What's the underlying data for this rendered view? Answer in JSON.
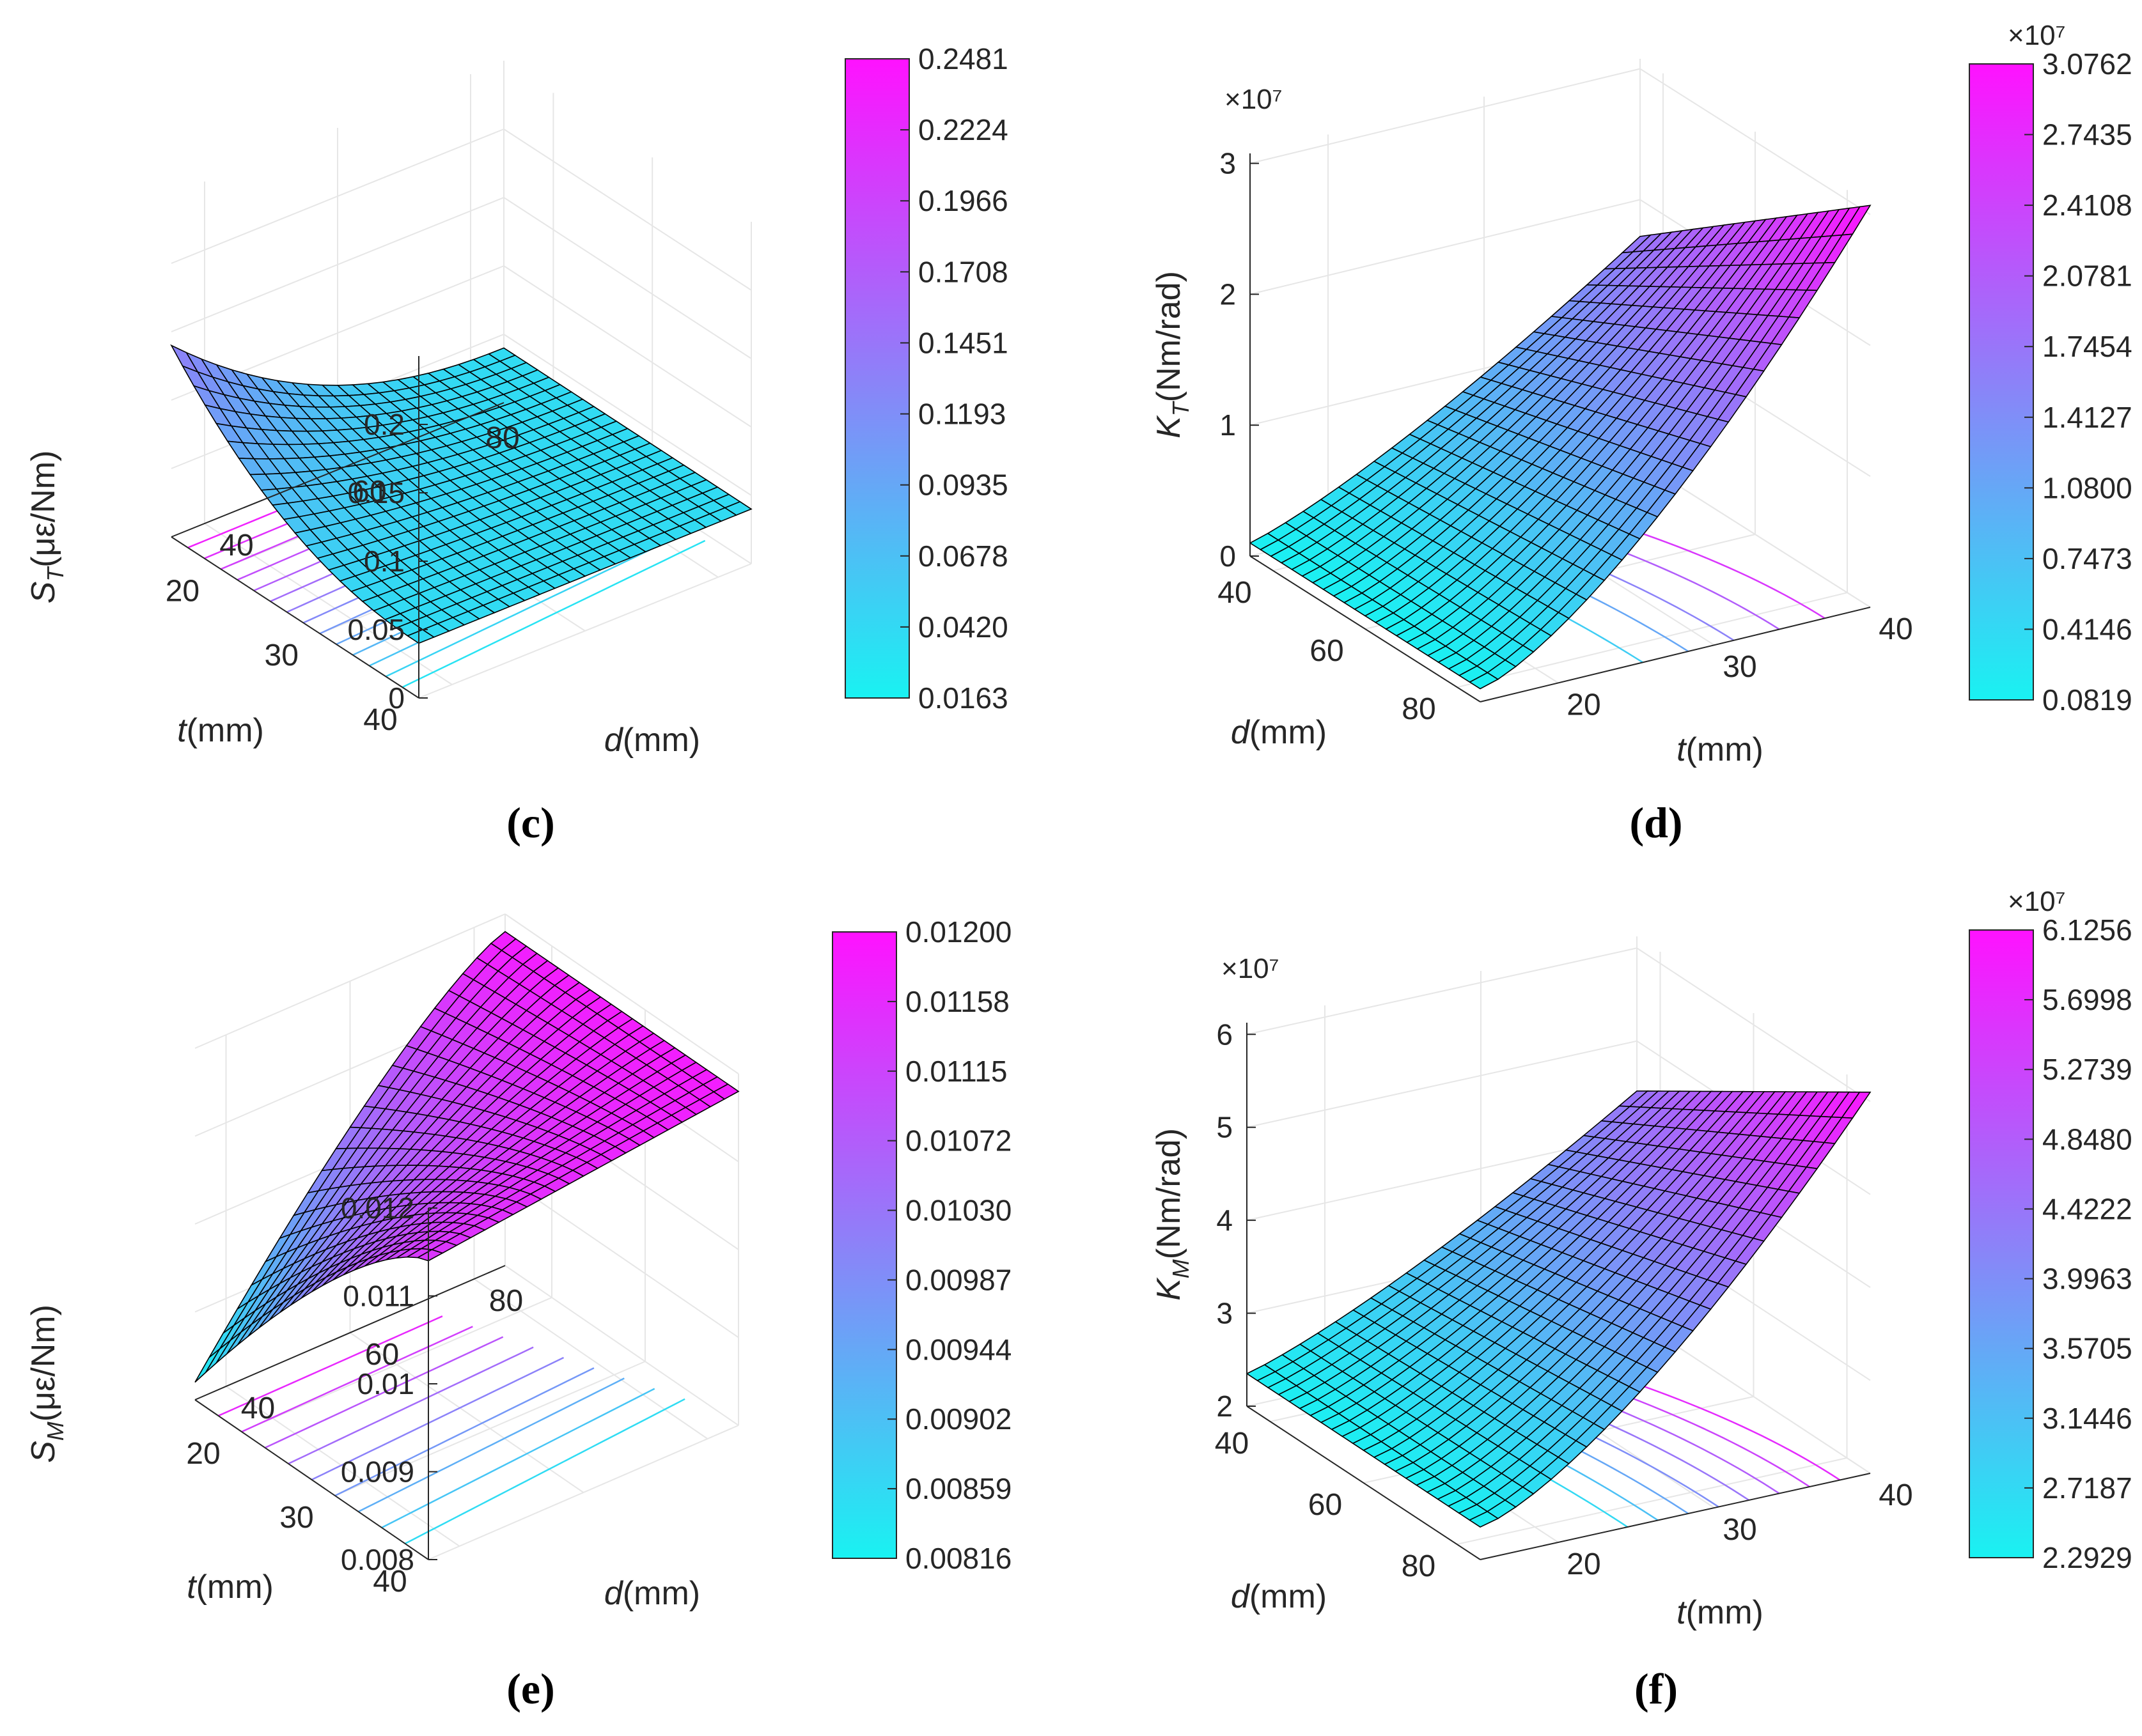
{
  "colors": {
    "low": "#19f2f2",
    "high": "#ff12ff",
    "axis": "#262626",
    "grid": "#e6e6e6",
    "mesh": "#000000"
  },
  "chart_data": [
    {
      "type": "surface",
      "panel": "c",
      "title": "",
      "zlabel_main": "S",
      "zlabel_sub": "T",
      "zlabel_unit": "(με/Nm)",
      "xlabel_var": "t",
      "xlabel_unit": "(mm)",
      "ylabel_var": "d",
      "ylabel_unit": "(mm)",
      "t_range": [
        15,
        40
      ],
      "d_range": [
        35,
        85
      ],
      "zlim": [
        0,
        0.25
      ],
      "t_ticks": [
        "20",
        "30",
        "40"
      ],
      "d_ticks": [
        "40",
        "60",
        "80"
      ],
      "z_ticks": [
        "0",
        "0.05",
        "0.1",
        "0.15",
        "0.2"
      ],
      "z_tick_values": [
        0,
        0.05,
        0.1,
        0.15,
        0.2
      ],
      "surface_corners": {
        "t_min_d_min": 0.14,
        "t_max_d_min": 0.04,
        "t_min_d_max": 0.04,
        "t_max_d_max": 0.04
      },
      "contours": 14,
      "colorbar": {
        "min": 0.0163,
        "max": 0.2481,
        "exponent": "",
        "ticks": [
          "0.2481",
          "0.2224",
          "0.1966",
          "0.1708",
          "0.1451",
          "0.1193",
          "0.0935",
          "0.0678",
          "0.0420",
          "0.0163"
        ]
      }
    },
    {
      "type": "surface",
      "panel": "d",
      "title": "",
      "zlabel_main": "K",
      "zlabel_sub": "T",
      "zlabel_unit": "(Nm/rad)",
      "xlabel_var": "t",
      "xlabel_unit": "(mm)",
      "ylabel_var": "d",
      "ylabel_unit": "(mm)",
      "t_range": [
        15,
        40
      ],
      "d_range": [
        35,
        85
      ],
      "zlim": [
        0,
        3.0762
      ],
      "z_exponent": "×10⁷",
      "t_ticks": [
        "20",
        "30",
        "40"
      ],
      "d_ticks": [
        "40",
        "60",
        "80"
      ],
      "z_ticks": [
        "0",
        "1",
        "2",
        "3"
      ],
      "z_tick_values": [
        0,
        1,
        2,
        3
      ],
      "surface_corners": {
        "t_min_d_min": 0.1,
        "t_max_d_min": 1.55,
        "t_min_d_max": 0.22,
        "t_max_d_max": 3.07
      },
      "contours": 5,
      "colorbar": {
        "min": 0.0819,
        "max": 3.0762,
        "exponent": "×10⁷",
        "ticks": [
          "3.0762",
          "2.7435",
          "2.4108",
          "2.0781",
          "1.7454",
          "1.4127",
          "1.0800",
          "0.7473",
          "0.4146",
          "0.0819"
        ]
      }
    },
    {
      "type": "surface",
      "panel": "e",
      "title": "",
      "zlabel_main": "S",
      "zlabel_sub": "M",
      "zlabel_unit": "(με/Nm)",
      "xlabel_var": "t",
      "xlabel_unit": "(mm)",
      "ylabel_var": "d",
      "ylabel_unit": "(mm)",
      "t_range": [
        15,
        40
      ],
      "d_range": [
        35,
        85
      ],
      "zlim": [
        0.008,
        0.012
      ],
      "t_ticks": [
        "20",
        "30",
        "40"
      ],
      "d_ticks": [
        "40",
        "60",
        "80"
      ],
      "z_ticks": [
        "0.008",
        "0.009",
        "0.01",
        "0.011",
        "0.012"
      ],
      "z_tick_values": [
        0.008,
        0.009,
        0.01,
        0.011,
        0.012
      ],
      "surface_corners": {
        "t_min_d_min": 0.0082,
        "t_max_d_min": 0.0111,
        "t_min_d_max": 0.0112,
        "t_max_d_max": 0.0118
      },
      "contours": 9,
      "colorbar": {
        "min": 0.00816,
        "max": 0.012,
        "exponent": "",
        "ticks": [
          "0.01200",
          "0.01158",
          "0.01115",
          "0.01072",
          "0.01030",
          "0.00987",
          "0.00944",
          "0.00902",
          "0.00859",
          "0.00816"
        ]
      }
    },
    {
      "type": "surface",
      "panel": "f",
      "title": "",
      "zlabel_main": "K",
      "zlabel_sub": "M",
      "zlabel_unit": "(Nm/rad)",
      "xlabel_var": "t",
      "xlabel_unit": "(mm)",
      "ylabel_var": "d",
      "ylabel_unit": "(mm)",
      "t_range": [
        15,
        40
      ],
      "d_range": [
        35,
        85
      ],
      "zlim": [
        2,
        6.1256
      ],
      "z_exponent": "×10⁷",
      "t_ticks": [
        "20",
        "30",
        "40"
      ],
      "d_ticks": [
        "40",
        "60",
        "80"
      ],
      "z_ticks": [
        "2",
        "3",
        "4",
        "5",
        "6"
      ],
      "z_tick_values": [
        2,
        3,
        4,
        5,
        6
      ],
      "surface_corners": {
        "t_min_d_min": 2.35,
        "t_max_d_min": 4.35,
        "t_min_d_max": 2.4,
        "t_max_d_max": 6.1
      },
      "contours": 8,
      "colorbar": {
        "min": 2.2929,
        "max": 6.1256,
        "exponent": "×10⁷",
        "ticks": [
          "6.1256",
          "5.6998",
          "5.2739",
          "4.8480",
          "4.4222",
          "3.9963",
          "3.5705",
          "3.1446",
          "2.7187",
          "2.2929"
        ]
      }
    }
  ]
}
